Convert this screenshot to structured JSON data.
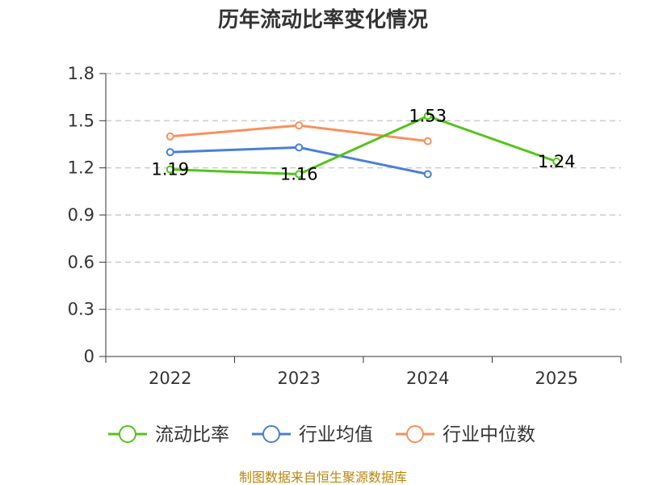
{
  "chart_data": {
    "type": "line",
    "title": "历年流动比率变化情况",
    "categories": [
      "2022",
      "2023",
      "2024",
      "2025"
    ],
    "xlabel": "",
    "ylabel": "",
    "ylim": [
      0,
      1.8
    ],
    "yticks": [
      "0",
      "0.3",
      "0.6",
      "0.9",
      "1.2",
      "1.5",
      "1.8"
    ],
    "grid": true,
    "legend_position": "bottom",
    "series": [
      {
        "name": "流动比率",
        "color": "#52c41a",
        "values": [
          1.19,
          1.16,
          1.53,
          1.24
        ],
        "labels": [
          "1.19",
          "1.16",
          "1.53",
          "1.24"
        ]
      },
      {
        "name": "行业均值",
        "color": "#4a7fd4",
        "values": [
          1.3,
          1.33,
          1.16,
          null
        ]
      },
      {
        "name": "行业中位数",
        "color": "#f7915d",
        "values": [
          1.4,
          1.47,
          1.37,
          null
        ]
      }
    ]
  },
  "source": "制图数据来自恒生聚源数据库"
}
